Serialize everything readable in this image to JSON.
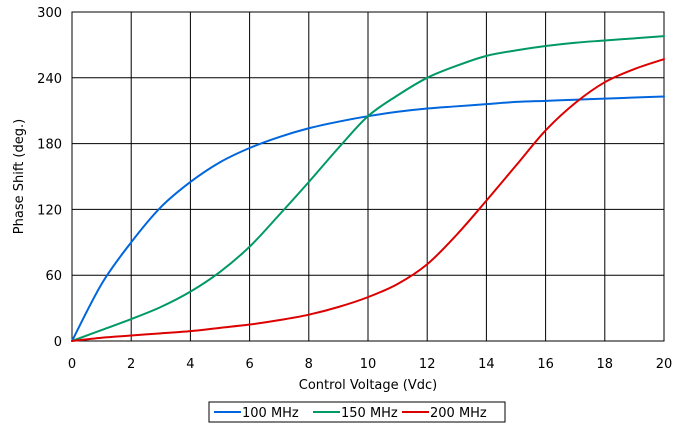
{
  "chart_data": {
    "type": "line",
    "title": "",
    "xlabel": "Control Voltage (Vdc)",
    "ylabel": "Phase Shift (deg.)",
    "xlim": [
      0,
      20
    ],
    "ylim": [
      0,
      300
    ],
    "xticks": [
      0,
      2,
      4,
      6,
      8,
      10,
      12,
      14,
      16,
      18,
      20
    ],
    "yticks": [
      0,
      60,
      120,
      180,
      240,
      300
    ],
    "grid": true,
    "legend_position": "bottom",
    "series": [
      {
        "name": "100 MHz",
        "color": "#0066dd",
        "x": [
          0,
          1,
          2,
          3,
          4,
          5,
          6,
          7,
          8,
          9,
          10,
          11,
          12,
          13,
          14,
          15,
          16,
          17,
          18,
          19,
          20
        ],
        "y": [
          0,
          52,
          90,
          122,
          145,
          163,
          176,
          186,
          194,
          200,
          205,
          209,
          212,
          214,
          216,
          218,
          219,
          220,
          221,
          222,
          223
        ]
      },
      {
        "name": "150 MHz",
        "color": "#009966",
        "x": [
          0,
          1,
          2,
          3,
          4,
          5,
          6,
          7,
          8,
          9,
          10,
          11,
          12,
          13,
          14,
          15,
          16,
          17,
          18,
          19,
          20
        ],
        "y": [
          0,
          10,
          20,
          31,
          45,
          63,
          86,
          115,
          145,
          176,
          205,
          224,
          240,
          251,
          260,
          265,
          269,
          272,
          274,
          276,
          278
        ]
      },
      {
        "name": "200 MHz",
        "color": "#dd0000",
        "x": [
          0,
          1,
          2,
          3,
          4,
          5,
          6,
          7,
          8,
          9,
          10,
          11,
          12,
          13,
          14,
          15,
          16,
          17,
          18,
          19,
          20
        ],
        "y": [
          0,
          3,
          5,
          7,
          9,
          12,
          15,
          19,
          24,
          31,
          40,
          52,
          70,
          97,
          128,
          160,
          192,
          217,
          236,
          248,
          257
        ]
      }
    ]
  }
}
